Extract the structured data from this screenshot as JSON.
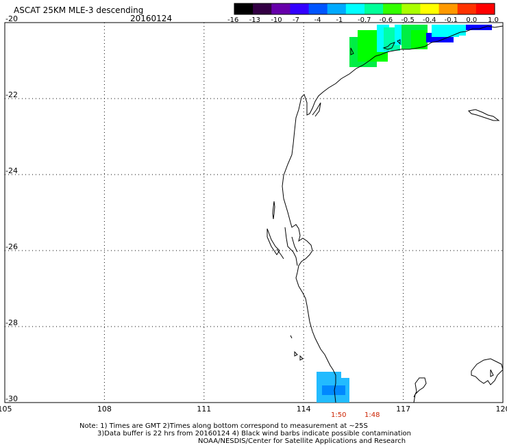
{
  "header": {
    "title": "ASCAT 25KM MLE-3 descending",
    "date": "20160124"
  },
  "colorbar": {
    "labels": [
      "-16",
      "-13",
      "-10",
      "-7",
      "-4",
      "-1",
      "-0.7",
      "-0.6",
      "-0.5",
      "-0.4",
      "-0.1",
      "0.0",
      "1.0"
    ],
    "colors": [
      "#000000",
      "#330044",
      "#6600aa",
      "#3300ff",
      "#0055ff",
      "#00aaff",
      "#00ffff",
      "#00ff99",
      "#33ff00",
      "#aaff00",
      "#ffff00",
      "#ff9900",
      "#ff3300",
      "#ff0000"
    ]
  },
  "map": {
    "lon_ticks": [
      "105",
      "108",
      "111",
      "114",
      "117",
      "120"
    ],
    "lat_ticks": [
      "-20",
      "-22",
      "-24",
      "-26",
      "-28",
      "-30"
    ],
    "lon_range": [
      105,
      120
    ],
    "lat_range": [
      -30,
      -20
    ],
    "grid": "dotted"
  },
  "time_labels": [
    "1:50",
    "1:48"
  ],
  "notes": {
    "line1": "Note: 1) Times are GMT 2)Times along bottom correspond to measurement at ~25S",
    "line2": "3)Data buffer is 22 hrs from 20160124 4) Black wind barbs indicate possible contamination",
    "line3": "NOAA/NESDIS/Center for Satellite Applications and Research"
  },
  "swath_colors": {
    "green": "#00ee44",
    "bright_green": "#00ff00",
    "cyan_green": "#00ffaa",
    "cyan": "#00ffff",
    "light_blue": "#22bbff",
    "mid_blue": "#0088ff",
    "blue": "#0000ff",
    "coast": "#000000"
  }
}
